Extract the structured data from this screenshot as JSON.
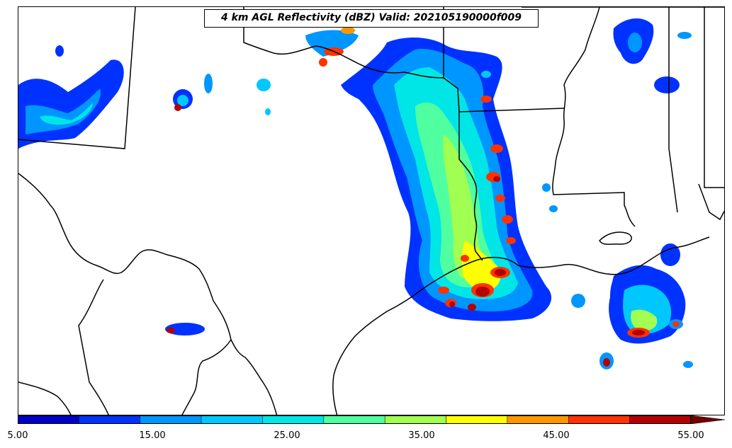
{
  "map": {
    "title": "4 km AGL Reflectivity (dBZ) Valid: 202105190000f009",
    "colorbar": {
      "levels": [
        5,
        10,
        15,
        20,
        25,
        30,
        35,
        40,
        45,
        50,
        55
      ],
      "colors": [
        "#0000c8",
        "#0032ff",
        "#0096ff",
        "#00c8ff",
        "#00e6e6",
        "#50ffa0",
        "#a0ff50",
        "#ffff00",
        "#ff9600",
        "#ff3200",
        "#b40000"
      ],
      "extend_color": "#6e0000",
      "tick_labels": [
        "5.00",
        "15.00",
        "25.00",
        "35.00",
        "45.00",
        "55.00"
      ]
    }
  }
}
